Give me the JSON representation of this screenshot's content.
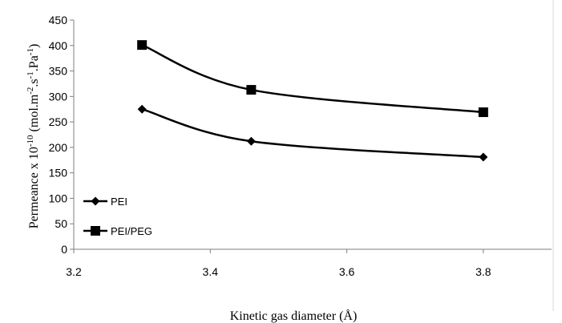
{
  "chart_data": {
    "type": "line",
    "title": "",
    "xlabel": "Kinetic gas diameter (Å)",
    "ylabel": "Permeance x 10 -10 (mol.m-2.s-1.Pa-1)",
    "ylabel_parts": {
      "main": "Permeance x 10",
      "exp1": "-10",
      "unit_open": " (mol.m",
      "exp2": "-2",
      "unit_mid1": ".s",
      "exp3": "-1",
      "unit_mid2": ".Pa",
      "exp4": "-1",
      "unit_close": ")"
    },
    "xlim": [
      3.2,
      3.9
    ],
    "ylim": [
      0,
      450
    ],
    "xticks": [
      "3.2",
      "3.4",
      "3.6",
      "3.8"
    ],
    "xtick_values": [
      3.2,
      3.4,
      3.6,
      3.8
    ],
    "yticks": [
      "0",
      "50",
      "100",
      "150",
      "200",
      "250",
      "300",
      "350",
      "400",
      "450"
    ],
    "ytick_values": [
      0,
      50,
      100,
      150,
      200,
      250,
      300,
      350,
      400,
      450
    ],
    "grid": false,
    "legend_position": "bottom-left",
    "series": [
      {
        "name": "PEI",
        "marker": "diamond",
        "color": "#000000",
        "x": [
          3.3,
          3.46,
          3.8
        ],
        "values": [
          275,
          212,
          181
        ]
      },
      {
        "name": "PEI/PEG",
        "marker": "square",
        "color": "#000000",
        "x": [
          3.3,
          3.46,
          3.8
        ],
        "values": [
          401,
          313,
          269
        ]
      }
    ]
  }
}
